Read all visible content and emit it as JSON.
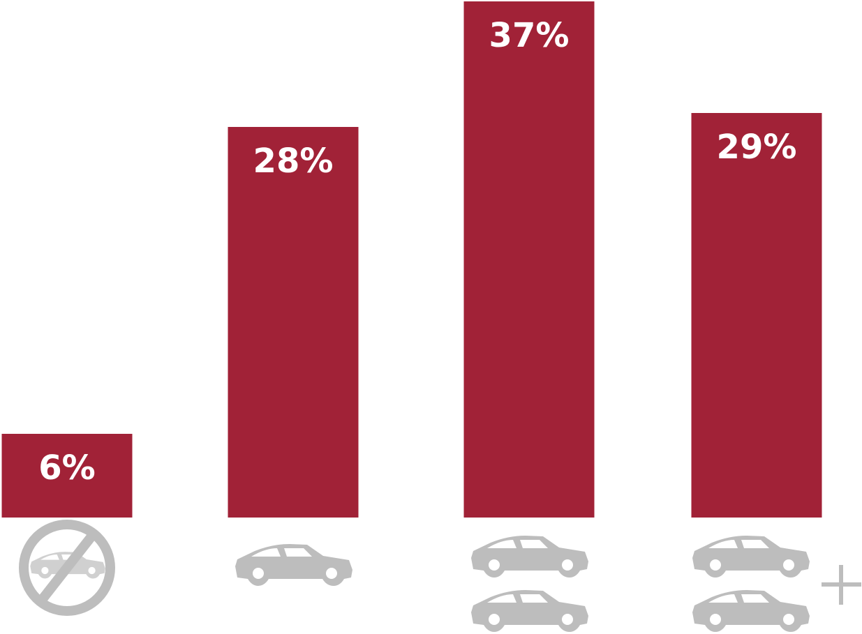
{
  "chart_data": {
    "type": "bar",
    "categories": [
      null,
      null,
      null,
      null
    ],
    "values": [
      6,
      28,
      37,
      29
    ],
    "value_labels": [
      "6%",
      "28%",
      "37%",
      "29%"
    ],
    "color": "#a12237"
  }
}
